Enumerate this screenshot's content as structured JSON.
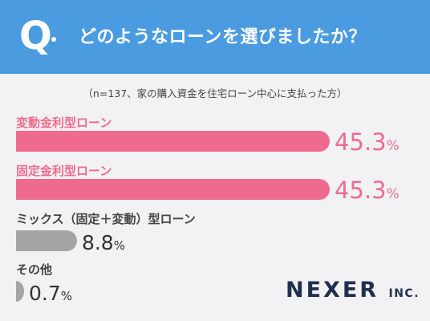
{
  "header": {
    "q_letter": "Q",
    "question": "どのようなローンを選びましたか？"
  },
  "note": "（n=137、家の購入資金を住宅ローン中心に支払った方）",
  "colors": {
    "header_bg": "#4a9be0",
    "highlight": "#ef6b8d",
    "muted": "#a5a5a8",
    "value_dark": "#333333"
  },
  "chart_data": {
    "type": "bar",
    "orientation": "horizontal",
    "categories": [
      "変動金利型ローン",
      "固定金利型ローン",
      "ミックス（固定＋変動）型ローン",
      "その他"
    ],
    "values": [
      45.3,
      45.3,
      8.8,
      0.7
    ],
    "value_labels": [
      "45.3",
      "45.3",
      "8.8",
      "0.7"
    ],
    "unit": "%",
    "highlighted": [
      true,
      true,
      false,
      false
    ],
    "xlim": [
      0,
      45.3
    ]
  },
  "logo": {
    "main": "NEXER",
    "sub": "INC."
  }
}
